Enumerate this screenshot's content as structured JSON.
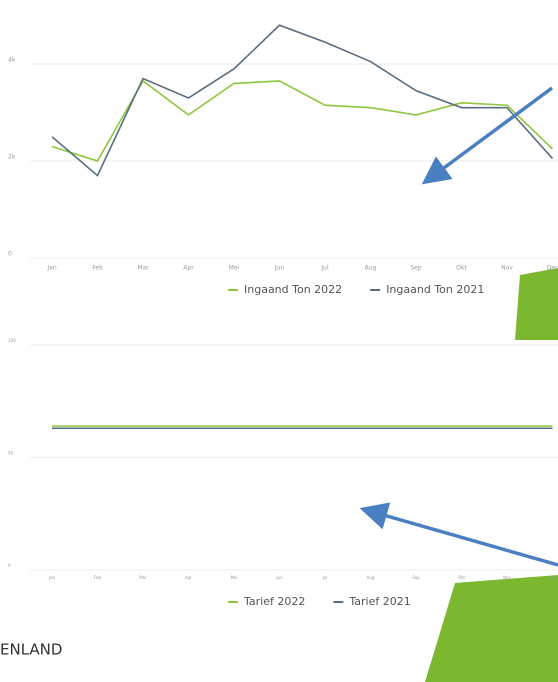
{
  "chart_data": [
    {
      "type": "line",
      "categories": [
        "Jan",
        "Feb",
        "Mar",
        "Apr",
        "Mei",
        "Jun",
        "Jul",
        "Aug",
        "Sep",
        "Okt",
        "Nov",
        "Dec"
      ],
      "series": [
        {
          "name": "Ingaand Ton 2022",
          "color": "#8dc63f",
          "values": [
            2300,
            2000,
            3650,
            2950,
            3600,
            3650,
            3150,
            3100,
            2950,
            3200,
            3150,
            2250
          ]
        },
        {
          "name": "Ingaand Ton 2021",
          "color": "#5a6e7f",
          "values": [
            2500,
            1700,
            3700,
            3300,
            3900,
            4800,
            4450,
            4050,
            3450,
            3100,
            3100,
            2050
          ]
        }
      ],
      "ylim": [
        0,
        5000
      ],
      "yticks": [
        0,
        {
          "value": 2000,
          "label": "2k"
        },
        {
          "value": 4000,
          "label": "4k"
        }
      ],
      "grid": true
    },
    {
      "type": "line",
      "categories": [
        "Jan",
        "Feb",
        "Mar",
        "Apr",
        "Mei",
        "Jun",
        "Jul",
        "Aug",
        "Sep",
        "Okt",
        "Nov",
        "Dec"
      ],
      "series": [
        {
          "name": "Tarief 2022",
          "color": "#8dc63f",
          "values": [
            64,
            64,
            64,
            64,
            64,
            64,
            64,
            64,
            64,
            64,
            64,
            64
          ]
        },
        {
          "name": "Tarief 2021",
          "color": "#5a6e7f",
          "values": [
            63,
            63,
            63,
            63,
            63,
            63,
            63,
            63,
            63,
            63,
            63,
            63
          ]
        }
      ],
      "ylim": [
        0,
        100
      ],
      "yticks": [
        0,
        50,
        100
      ],
      "grid": true
    }
  ],
  "logo_text": "ENLAND"
}
